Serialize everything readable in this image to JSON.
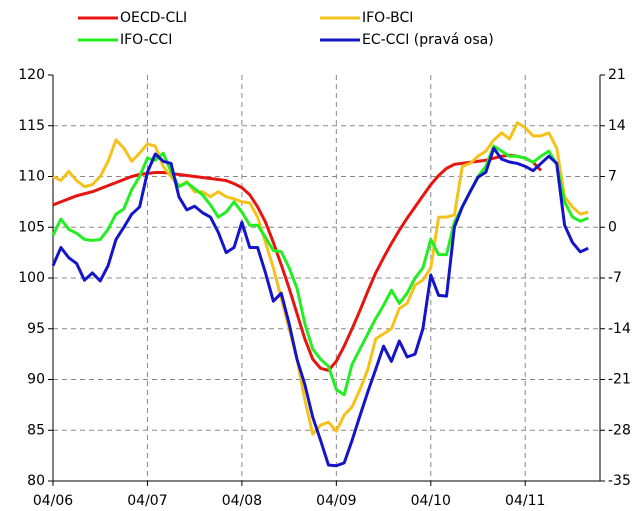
{
  "chart_data": {
    "type": "line",
    "categories": [
      "04/06",
      null,
      null,
      null,
      null,
      null,
      null,
      null,
      null,
      null,
      null,
      null,
      "04/07",
      null,
      null,
      null,
      null,
      null,
      null,
      null,
      null,
      null,
      null,
      null,
      "04/08",
      null,
      null,
      null,
      null,
      null,
      null,
      null,
      null,
      null,
      null,
      null,
      "04/09",
      null,
      null,
      null,
      null,
      null,
      null,
      null,
      null,
      null,
      null,
      null,
      "04/10",
      null,
      null,
      null,
      null,
      null,
      null,
      null,
      null,
      null,
      null,
      null,
      "04/11",
      null,
      null,
      null,
      null,
      null,
      null,
      null,
      null
    ],
    "series": [
      {
        "name": "OECD-CLI",
        "color": "#e8140f",
        "values": [
          107.2,
          107.5,
          107.8,
          108.1,
          108.3,
          108.5,
          108.8,
          109.1,
          109.4,
          109.7,
          110,
          110.2,
          110.3,
          110.4,
          110.4,
          110.3,
          110.2,
          110.1,
          110,
          109.9,
          109.8,
          109.7,
          109.6,
          109.3,
          108.9,
          108.2,
          107,
          105.5,
          103.5,
          101.3,
          99,
          96.5,
          94,
          92,
          91.1,
          90.9,
          91.8,
          93.3,
          95,
          96.8,
          98.7,
          100.5,
          102,
          103.4,
          104.7,
          105.9,
          107,
          108.1,
          109.2,
          110.1,
          110.8,
          111.2,
          111.3,
          111.4,
          111.5,
          111.6,
          111.8,
          112,
          112.1,
          112,
          111.8,
          111.4,
          110.6,
          null,
          null,
          null,
          null,
          null,
          null
        ]
      },
      {
        "name": "IFO-BCI",
        "color": "#f5c21b",
        "values": [
          110,
          109.6,
          110.5,
          109.6,
          109,
          109.2,
          110,
          111.5,
          113.6,
          112.8,
          111.5,
          112.3,
          113.2,
          113,
          111,
          110,
          109,
          109.5,
          108.5,
          108.5,
          108,
          108.5,
          108,
          107.8,
          107.5,
          107.4,
          106,
          103.5,
          101,
          98,
          95,
          92,
          88,
          84.6,
          85.5,
          85.8,
          84.9,
          86.5,
          87.3,
          89,
          91,
          94,
          94.5,
          95,
          97,
          97.5,
          99.3,
          99.8,
          101,
          106,
          106,
          106.2,
          111,
          111.3,
          112,
          112.5,
          113.6,
          114.3,
          113.7,
          115.3,
          114.8,
          114,
          114,
          114.3,
          112.8,
          108,
          107,
          106.3,
          106.5
        ]
      },
      {
        "name": "IFO-CCI",
        "color": "#22ee22",
        "values": [
          104.2,
          105.8,
          104.8,
          104.4,
          103.8,
          103.7,
          103.8,
          104.8,
          106.3,
          106.8,
          108.7,
          110,
          111.8,
          111.6,
          112.3,
          110.5,
          109,
          109.4,
          108.8,
          108.2,
          107.2,
          106,
          106.5,
          107.5,
          106.5,
          105.2,
          105.2,
          104,
          102.7,
          102.6,
          101,
          99,
          95.5,
          93,
          92,
          91.3,
          89,
          88.5,
          91.5,
          93,
          94.5,
          96,
          97.3,
          98.8,
          97.5,
          98.5,
          100,
          101,
          103.8,
          102.3,
          102.3,
          105.5,
          107,
          108.5,
          110,
          111,
          113,
          112.5,
          112,
          112,
          111.8,
          111.4,
          112,
          112.5,
          111.2,
          107.5,
          106,
          105.6,
          105.9
        ]
      },
      {
        "name": "EC-CCI (pravá osa)",
        "color": "#1414c8",
        "axis": "y2",
        "values": [
          -5.3,
          -2.8,
          -4.2,
          -5.0,
          -7.3,
          -6.3,
          -7.4,
          -5.3,
          -1.7,
          0,
          1.8,
          2.8,
          7.6,
          10.1,
          9.1,
          8.8,
          4.2,
          2.4,
          2.9,
          2.0,
          1.4,
          -0.7,
          -3.5,
          -2.8,
          0.7,
          -2.8,
          -2.8,
          -6.3,
          -10.2,
          -9.1,
          -13.3,
          -18.2,
          -21.7,
          -26.2,
          -29.4,
          -32.8,
          -32.9,
          -32.5,
          -29.4,
          -26.0,
          -22.7,
          -19.6,
          -16.4,
          -18.5,
          -15.7,
          -17.9,
          -17.5,
          -14,
          -6.6,
          -9.4,
          -9.5,
          0,
          2.8,
          4.9,
          6.9,
          7.6,
          10.9,
          9.4,
          9.0,
          8.8,
          8.4,
          7.8,
          8.8,
          9.8,
          8.8,
          0.3,
          -2.1,
          -3.4,
          -2.9
        ]
      }
    ],
    "ylim": [
      80,
      120
    ],
    "yticks": [
      80,
      85,
      90,
      95,
      100,
      105,
      110,
      115,
      120
    ],
    "y2lim": [
      -35,
      21
    ],
    "y2ticks": [
      -35,
      -28,
      -21,
      -14,
      -7,
      0,
      7,
      14,
      21
    ],
    "grid": true
  }
}
